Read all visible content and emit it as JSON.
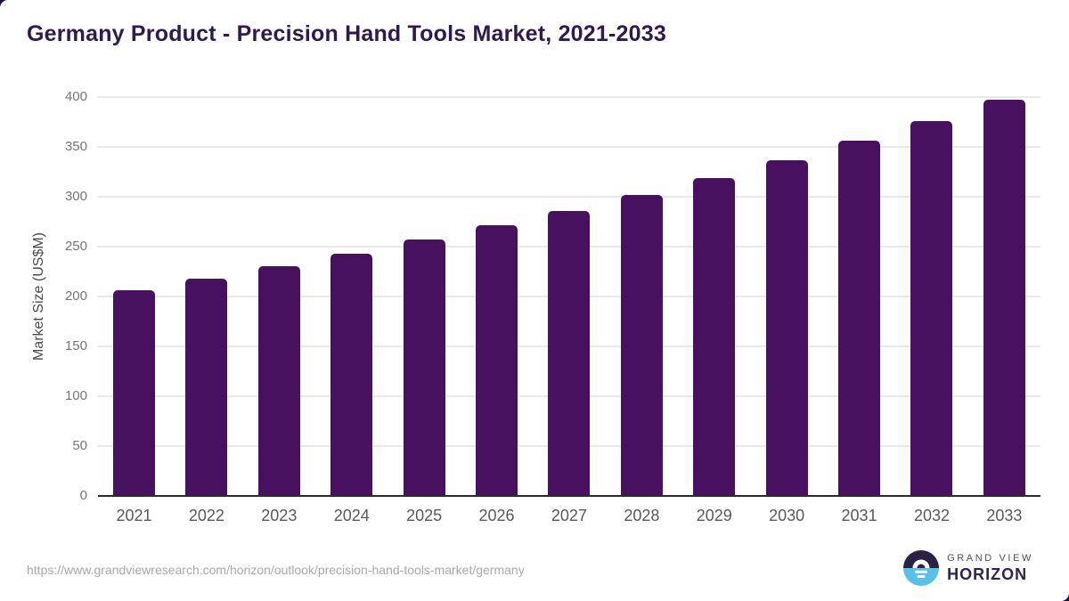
{
  "page": {
    "title": "Germany Product - Precision Hand Tools Market, 2021-2033",
    "source_url": "https://www.grandviewresearch.com/horizon/outlook/precision-hand-tools-market/germany",
    "logo": {
      "line1": "GRAND VIEW",
      "line2": "HORIZON"
    }
  },
  "chart_data": {
    "type": "bar",
    "title": "Germany Product - Precision Hand Tools Market, 2021-2033",
    "categories": [
      "2021",
      "2022",
      "2023",
      "2024",
      "2025",
      "2026",
      "2027",
      "2028",
      "2029",
      "2030",
      "2031",
      "2032",
      "2033"
    ],
    "values": [
      206,
      218,
      230,
      243,
      257,
      271,
      286,
      302,
      319,
      337,
      356,
      376,
      397
    ],
    "xlabel": "",
    "ylabel": "Market Size (US$M)",
    "ylim": [
      0,
      400
    ],
    "yticks": [
      0,
      50,
      100,
      150,
      200,
      250,
      300,
      350,
      400
    ],
    "grid": true,
    "legend_position": "none",
    "bar_color": "#47115f"
  },
  "colors": {
    "title": "#2e1a4d",
    "bar": "#47115f",
    "gridline": "#e8e8e8",
    "axis_line": "#2b2b2b",
    "tick_label": "#757575",
    "category_label": "#595959",
    "url_text": "#a8a8a8",
    "logo_dark": "#2b2144",
    "logo_blue": "#58c1e8",
    "page_corner": "#200f3a"
  }
}
